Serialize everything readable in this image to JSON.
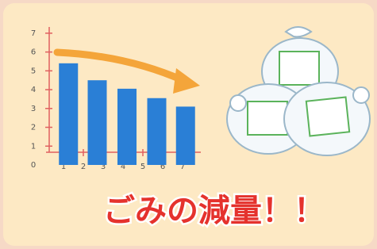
{
  "chart_data": {
    "type": "bar",
    "x": [
      1.25,
      2.7,
      4.2,
      5.7,
      7.15
    ],
    "values": [
      5.4,
      4.5,
      4.05,
      3.55,
      3.1
    ],
    "color": "#2a7fd6",
    "xlim": [
      0,
      7.6
    ],
    "xticks": [
      1,
      2,
      3,
      4,
      5,
      6,
      7
    ],
    "ylim": [
      0,
      7.5
    ],
    "yticks": [
      0,
      1,
      2,
      3,
      4,
      5,
      6,
      7
    ],
    "annotation": "ごみの減量！！"
  }
}
